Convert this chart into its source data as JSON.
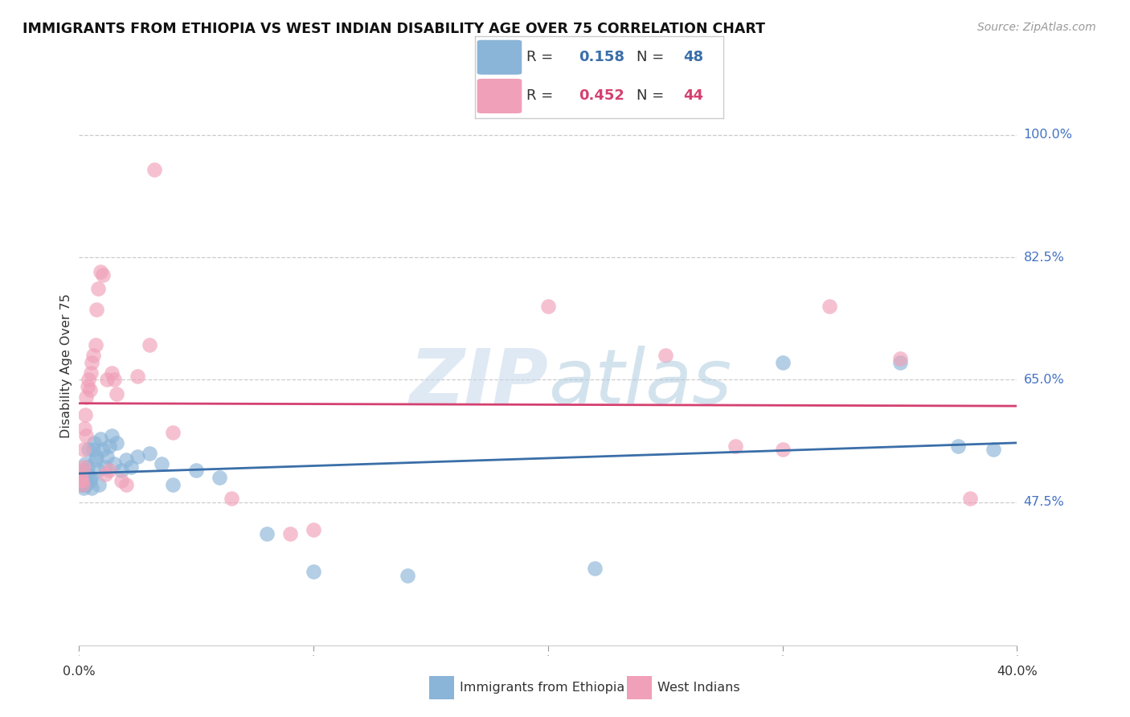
{
  "title": "IMMIGRANTS FROM ETHIOPIA VS WEST INDIAN DISABILITY AGE OVER 75 CORRELATION CHART",
  "source": "Source: ZipAtlas.com",
  "ylabel": "Disability Age Over 75",
  "yticks": [
    47.5,
    65.0,
    82.5,
    100.0
  ],
  "ytick_labels": [
    "47.5%",
    "65.0%",
    "82.5%",
    "100.0%"
  ],
  "xlim": [
    0.0,
    40.0
  ],
  "ylim": [
    27.0,
    107.0
  ],
  "watermark_zip": "ZIP",
  "watermark_atlas": "atlas",
  "legend_blue_r": "0.158",
  "legend_blue_n": "48",
  "legend_pink_r": "0.452",
  "legend_pink_n": "44",
  "blue_color": "#8ab4d8",
  "pink_color": "#f0a0b8",
  "blue_line_color": "#3a6ea8",
  "pink_line_color": "#d44070",
  "blue_scatter": [
    [
      0.05,
      50.5
    ],
    [
      0.08,
      51.0
    ],
    [
      0.1,
      52.0
    ],
    [
      0.12,
      50.0
    ],
    [
      0.15,
      51.5
    ],
    [
      0.18,
      50.0
    ],
    [
      0.2,
      49.5
    ],
    [
      0.22,
      50.5
    ],
    [
      0.25,
      53.0
    ],
    [
      0.28,
      51.0
    ],
    [
      0.3,
      50.0
    ],
    [
      0.35,
      52.5
    ],
    [
      0.38,
      51.5
    ],
    [
      0.4,
      55.0
    ],
    [
      0.45,
      50.5
    ],
    [
      0.5,
      51.0
    ],
    [
      0.55,
      49.5
    ],
    [
      0.6,
      55.0
    ],
    [
      0.65,
      56.0
    ],
    [
      0.7,
      53.5
    ],
    [
      0.75,
      54.0
    ],
    [
      0.8,
      52.0
    ],
    [
      0.85,
      50.0
    ],
    [
      0.9,
      56.5
    ],
    [
      1.0,
      55.0
    ],
    [
      1.1,
      52.5
    ],
    [
      1.2,
      54.0
    ],
    [
      1.3,
      55.5
    ],
    [
      1.4,
      57.0
    ],
    [
      1.5,
      53.0
    ],
    [
      1.6,
      56.0
    ],
    [
      1.8,
      52.0
    ],
    [
      2.0,
      53.5
    ],
    [
      2.2,
      52.5
    ],
    [
      2.5,
      54.0
    ],
    [
      3.0,
      54.5
    ],
    [
      3.5,
      53.0
    ],
    [
      4.0,
      50.0
    ],
    [
      5.0,
      52.0
    ],
    [
      6.0,
      51.0
    ],
    [
      8.0,
      43.0
    ],
    [
      10.0,
      37.5
    ],
    [
      14.0,
      37.0
    ],
    [
      22.0,
      38.0
    ],
    [
      30.0,
      67.5
    ],
    [
      35.0,
      67.5
    ],
    [
      37.5,
      55.5
    ],
    [
      39.0,
      55.0
    ]
  ],
  "pink_scatter": [
    [
      0.05,
      50.5
    ],
    [
      0.08,
      51.0
    ],
    [
      0.1,
      52.0
    ],
    [
      0.12,
      50.5
    ],
    [
      0.15,
      50.0
    ],
    [
      0.18,
      52.5
    ],
    [
      0.2,
      55.0
    ],
    [
      0.22,
      58.0
    ],
    [
      0.25,
      60.0
    ],
    [
      0.28,
      57.0
    ],
    [
      0.3,
      62.5
    ],
    [
      0.35,
      64.0
    ],
    [
      0.4,
      65.0
    ],
    [
      0.45,
      63.5
    ],
    [
      0.5,
      66.0
    ],
    [
      0.55,
      67.5
    ],
    [
      0.6,
      68.5
    ],
    [
      0.7,
      70.0
    ],
    [
      0.75,
      75.0
    ],
    [
      0.8,
      78.0
    ],
    [
      0.9,
      80.5
    ],
    [
      1.0,
      80.0
    ],
    [
      1.1,
      51.5
    ],
    [
      1.2,
      65.0
    ],
    [
      1.3,
      52.0
    ],
    [
      1.4,
      66.0
    ],
    [
      1.5,
      65.0
    ],
    [
      1.6,
      63.0
    ],
    [
      1.8,
      50.5
    ],
    [
      2.0,
      50.0
    ],
    [
      2.5,
      65.5
    ],
    [
      3.0,
      70.0
    ],
    [
      3.2,
      95.0
    ],
    [
      4.0,
      57.5
    ],
    [
      6.5,
      48.0
    ],
    [
      9.0,
      43.0
    ],
    [
      10.0,
      43.5
    ],
    [
      20.0,
      75.5
    ],
    [
      25.0,
      68.5
    ],
    [
      28.0,
      55.5
    ],
    [
      30.0,
      55.0
    ],
    [
      32.0,
      75.5
    ],
    [
      35.0,
      68.0
    ],
    [
      38.0,
      48.0
    ]
  ]
}
